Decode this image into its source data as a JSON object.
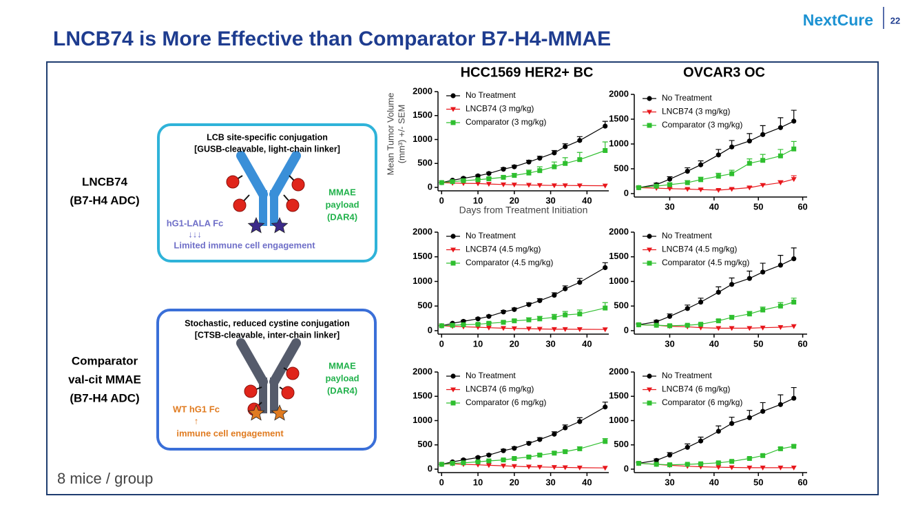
{
  "header": {
    "title": "LNCB74 is More Effective than Comparator B7-H4-MMAE",
    "logo": "NextCure",
    "page": "22"
  },
  "footer": "8 mice / group",
  "diagrams": [
    {
      "label": [
        "LNCB74",
        "(B7-H4 ADC)"
      ],
      "heading": [
        "LCB site-specific conjugation",
        "[GUSB-cleavable, light-chain linker]"
      ],
      "payload": [
        "MMAE",
        "payload",
        "(DAR4)"
      ],
      "fc": [
        "hG1-LALA Fc",
        "↓↓↓",
        "Limited immune cell engagement"
      ]
    },
    {
      "label": [
        "Comparator",
        "val-cit MMAE",
        "(B7-H4 ADC)"
      ],
      "heading": [
        "Stochastic, reduced cystine conjugation",
        "[CTSB-cleavable, inter-chain linker]"
      ],
      "payload": [
        "MMAE",
        "payload",
        "(DAR4)"
      ],
      "fc": [
        "WT hG1 Fc",
        "↑",
        "immune cell engagement"
      ]
    }
  ],
  "chart_data": [
    {
      "type": "line",
      "title": "HCC1569 HER2+ BC",
      "y_label": [
        "Mean Tumor Volume",
        "(mm³) +/- SEM"
      ],
      "x_label": "Days from Treatment Initiation",
      "x": [
        0,
        3,
        6,
        10,
        13,
        17,
        20,
        24,
        27,
        31,
        34,
        38,
        45
      ],
      "xlim": [
        -1,
        46
      ],
      "xticks": [
        0,
        10,
        20,
        30,
        40
      ],
      "ylim": [
        0,
        2000
      ],
      "yticks": [
        0,
        500,
        1000,
        1500,
        2000
      ],
      "series": [
        {
          "name": "No Treatment",
          "color": "#000000",
          "marker": "circle",
          "values": [
            100,
            150,
            190,
            240,
            290,
            380,
            430,
            530,
            610,
            720,
            850,
            980,
            1280
          ],
          "errors": [
            0,
            15,
            20,
            20,
            25,
            30,
            30,
            35,
            40,
            50,
            60,
            80,
            100
          ]
        },
        {
          "name": "LNCB74 (3 mg/kg)",
          "color": "#e8161b",
          "marker": "triangle",
          "values": [
            100,
            90,
            85,
            80,
            70,
            60,
            55,
            50,
            45,
            40,
            40,
            38,
            35
          ]
        },
        {
          "name": "Comparator (3 mg/kg)",
          "color": "#2fbf2f",
          "marker": "square",
          "values": [
            100,
            120,
            140,
            160,
            180,
            210,
            250,
            300,
            350,
            430,
            500,
            580,
            770
          ],
          "errors": [
            0,
            10,
            15,
            20,
            25,
            30,
            40,
            60,
            80,
            100,
            120,
            150,
            180
          ]
        }
      ]
    },
    {
      "type": "line",
      "x": [
        0,
        3,
        6,
        10,
        13,
        17,
        20,
        24,
        27,
        31,
        34,
        38,
        45
      ],
      "xlim": [
        -1,
        46
      ],
      "xticks": [
        0,
        10,
        20,
        30,
        40
      ],
      "ylim": [
        0,
        2000
      ],
      "yticks": [
        0,
        500,
        1000,
        1500,
        2000
      ],
      "series": [
        {
          "name": "No Treatment",
          "color": "#000000",
          "marker": "circle",
          "values": [
            100,
            150,
            190,
            240,
            290,
            380,
            430,
            530,
            610,
            720,
            850,
            980,
            1280
          ],
          "errors": [
            0,
            15,
            20,
            20,
            25,
            30,
            30,
            35,
            40,
            50,
            60,
            80,
            100
          ]
        },
        {
          "name": "LNCB74 (4.5 mg/kg)",
          "color": "#e8161b",
          "marker": "triangle",
          "values": [
            100,
            90,
            80,
            70,
            60,
            50,
            45,
            40,
            35,
            30,
            30,
            28,
            25
          ]
        },
        {
          "name": "Comparator (4.5 mg/kg)",
          "color": "#2fbf2f",
          "marker": "square",
          "values": [
            100,
            110,
            120,
            130,
            150,
            170,
            200,
            220,
            240,
            270,
            320,
            340,
            460
          ],
          "errors": [
            0,
            10,
            10,
            15,
            20,
            25,
            30,
            40,
            50,
            60,
            70,
            80,
            110
          ]
        }
      ]
    },
    {
      "type": "line",
      "x": [
        0,
        3,
        6,
        10,
        13,
        17,
        20,
        24,
        27,
        31,
        34,
        38,
        45
      ],
      "xlim": [
        -1,
        46
      ],
      "xticks": [
        0,
        10,
        20,
        30,
        40
      ],
      "ylim": [
        0,
        2000
      ],
      "yticks": [
        0,
        500,
        1000,
        1500,
        2000
      ],
      "series": [
        {
          "name": "No Treatment",
          "color": "#000000",
          "marker": "circle",
          "values": [
            100,
            150,
            190,
            240,
            290,
            380,
            430,
            530,
            610,
            720,
            850,
            980,
            1280
          ],
          "errors": [
            0,
            15,
            20,
            20,
            25,
            30,
            30,
            35,
            40,
            50,
            60,
            80,
            100
          ]
        },
        {
          "name": "LNCB74 (6 mg/kg)",
          "color": "#e8161b",
          "marker": "triangle",
          "values": [
            100,
            110,
            100,
            90,
            80,
            70,
            60,
            50,
            45,
            40,
            35,
            30,
            25
          ]
        },
        {
          "name": "Comparator (6 mg/kg)",
          "color": "#2fbf2f",
          "marker": "square",
          "values": [
            100,
            120,
            130,
            150,
            170,
            190,
            220,
            250,
            290,
            330,
            360,
            420,
            570
          ],
          "errors": [
            0,
            10,
            10,
            15,
            15,
            20,
            20,
            25,
            25,
            30,
            30,
            40,
            60
          ]
        }
      ]
    },
    {
      "type": "line",
      "title": "OVCAR3 OC",
      "x": [
        23,
        27,
        30,
        34,
        37,
        41,
        44,
        48,
        51,
        55,
        58
      ],
      "xlim": [
        22,
        61
      ],
      "xticks": [
        30,
        40,
        50,
        60
      ],
      "ylim": [
        0,
        2000
      ],
      "yticks": [
        0,
        500,
        1000,
        1500,
        2000
      ],
      "series": [
        {
          "name": "No Treatment",
          "color": "#000000",
          "marker": "circle",
          "values": [
            120,
            180,
            290,
            450,
            580,
            780,
            940,
            1060,
            1190,
            1330,
            1460
          ],
          "errors": [
            20,
            30,
            50,
            70,
            80,
            110,
            130,
            150,
            180,
            200,
            220
          ]
        },
        {
          "name": "LNCB74 (3 mg/kg)",
          "color": "#e8161b",
          "marker": "triangle",
          "values": [
            120,
            110,
            100,
            90,
            80,
            70,
            90,
            120,
            170,
            220,
            290
          ],
          "errors": [
            10,
            10,
            10,
            10,
            10,
            10,
            15,
            20,
            30,
            40,
            70
          ]
        },
        {
          "name": "Comparator (3 mg/kg)",
          "color": "#2fbf2f",
          "marker": "square",
          "values": [
            120,
            150,
            180,
            220,
            280,
            350,
            400,
            610,
            670,
            760,
            900
          ],
          "errors": [
            20,
            20,
            30,
            40,
            50,
            60,
            70,
            90,
            120,
            130,
            150
          ]
        }
      ]
    },
    {
      "type": "line",
      "x": [
        23,
        27,
        30,
        34,
        37,
        41,
        44,
        48,
        51,
        55,
        58
      ],
      "xlim": [
        22,
        61
      ],
      "xticks": [
        30,
        40,
        50,
        60
      ],
      "ylim": [
        0,
        2000
      ],
      "yticks": [
        0,
        500,
        1000,
        1500,
        2000
      ],
      "series": [
        {
          "name": "No Treatment",
          "color": "#000000",
          "marker": "circle",
          "values": [
            120,
            180,
            290,
            450,
            580,
            780,
            940,
            1060,
            1190,
            1330,
            1460
          ],
          "errors": [
            20,
            30,
            50,
            70,
            80,
            110,
            130,
            150,
            180,
            200,
            220
          ]
        },
        {
          "name": "LNCB74 (4.5 mg/kg)",
          "color": "#e8161b",
          "marker": "triangle",
          "values": [
            120,
            110,
            90,
            80,
            60,
            50,
            50,
            50,
            60,
            70,
            90
          ]
        },
        {
          "name": "Comparator (4.5 mg/kg)",
          "color": "#2fbf2f",
          "marker": "square",
          "values": [
            120,
            110,
            100,
            110,
            130,
            200,
            270,
            340,
            420,
            500,
            580
          ],
          "errors": [
            10,
            10,
            10,
            15,
            20,
            30,
            40,
            50,
            60,
            70,
            80
          ]
        }
      ]
    },
    {
      "type": "line",
      "x": [
        23,
        27,
        30,
        34,
        37,
        41,
        44,
        48,
        51,
        55,
        58
      ],
      "xlim": [
        22,
        61
      ],
      "xticks": [
        30,
        40,
        50,
        60
      ],
      "ylim": [
        0,
        2000
      ],
      "yticks": [
        0,
        500,
        1000,
        1500,
        2000
      ],
      "series": [
        {
          "name": "No Treatment",
          "color": "#000000",
          "marker": "circle",
          "values": [
            120,
            180,
            290,
            450,
            580,
            780,
            940,
            1060,
            1190,
            1330,
            1460
          ],
          "errors": [
            20,
            30,
            50,
            70,
            80,
            110,
            130,
            150,
            180,
            200,
            220
          ]
        },
        {
          "name": "LNCB74 (6 mg/kg)",
          "color": "#e8161b",
          "marker": "triangle",
          "values": [
            120,
            100,
            80,
            60,
            50,
            40,
            35,
            30,
            30,
            30,
            30
          ]
        },
        {
          "name": "Comparator (6 mg/kg)",
          "color": "#2fbf2f",
          "marker": "square",
          "values": [
            120,
            100,
            90,
            100,
            110,
            130,
            160,
            220,
            280,
            420,
            470
          ],
          "errors": [
            10,
            10,
            10,
            10,
            15,
            15,
            20,
            20,
            25,
            30,
            30
          ]
        }
      ]
    }
  ]
}
